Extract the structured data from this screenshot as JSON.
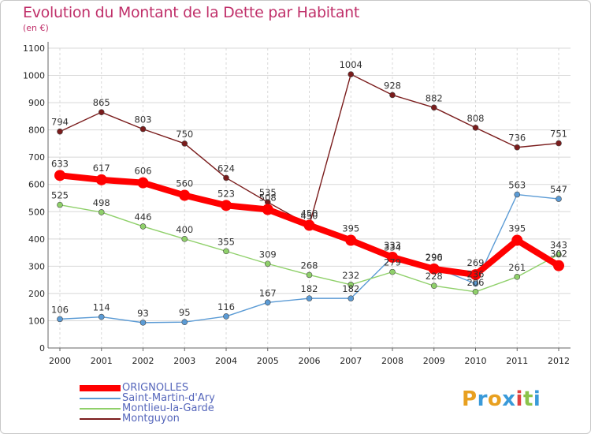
{
  "title": "Evolution du Montant de la Dette par Habitant",
  "subtitle": "(en €)",
  "logo": {
    "letters": [
      "P",
      "r",
      "o",
      "x",
      "i",
      "t",
      "i"
    ],
    "colors": [
      "#e8a020",
      "#3a9ad9",
      "#e8a020",
      "#3a9ad9",
      "#e04040",
      "#8bc34a",
      "#3a9ad9"
    ]
  },
  "chart_data": {
    "type": "line",
    "title": "Evolution du Montant de la Dette par Habitant",
    "ylabel": "(en €)",
    "xlabel": "",
    "x": [
      "2000",
      "2001",
      "2002",
      "2003",
      "2004",
      "2005",
      "2006",
      "2007",
      "2008",
      "2009",
      "2010",
      "2011",
      "2012"
    ],
    "ylim": [
      0,
      1100
    ],
    "yticks": [
      "0",
      "100",
      "200",
      "300",
      "400",
      "500",
      "600",
      "700",
      "800",
      "900",
      "1000",
      "1100"
    ],
    "grid": true,
    "legend": "bottom-left",
    "series": [
      {
        "name": "Montguyon",
        "color": "#7a1c1c",
        "values": [
          794,
          865,
          803,
          750,
          624,
          535,
          450,
          1004,
          928,
          882,
          808,
          736,
          751
        ],
        "labels": [
          "794",
          "865",
          "803",
          "750",
          "624",
          "535",
          "450",
          "1004",
          "928",
          "882",
          "808",
          "736",
          "751"
        ]
      },
      {
        "name": "Saint-Martin-d'Ary",
        "color": "#5b9bd5",
        "values": [
          106,
          114,
          93,
          95,
          116,
          167,
          182,
          182,
          334,
          296,
          236,
          563,
          547
        ],
        "labels": [
          "106",
          "114",
          "93",
          "95",
          "116",
          "167",
          "182",
          "182",
          "334",
          "296",
          "236",
          "563",
          "547"
        ]
      },
      {
        "name": "Montlieu-la-Garde",
        "color": "#8fd06a",
        "values": [
          525,
          498,
          446,
          400,
          355,
          309,
          268,
          232,
          279,
          228,
          206,
          261,
          343
        ],
        "labels": [
          "525",
          "498",
          "446",
          "400",
          "355",
          "309",
          "268",
          "232",
          "279",
          "228",
          "206",
          "261",
          "343"
        ]
      },
      {
        "name": "ORIGNOLLES",
        "color": "#ff0000",
        "values": [
          633,
          617,
          606,
          560,
          523,
          508,
          450,
          395,
          333,
          290,
          269,
          395,
          302
        ],
        "labels": [
          "633",
          "617",
          "606",
          "560",
          "523",
          "508",
          "450",
          "395",
          "333",
          "290",
          "269",
          "395",
          "302"
        ]
      }
    ],
    "legend_entries": [
      {
        "name": "ORIGNOLLES",
        "color": "#ff0000"
      },
      {
        "name": "Saint-Martin-d'Ary",
        "color": "#5b9bd5"
      },
      {
        "name": "Montlieu-la-Garde",
        "color": "#8fd06a"
      },
      {
        "name": "Montguyon",
        "color": "#7a1c1c"
      }
    ]
  }
}
